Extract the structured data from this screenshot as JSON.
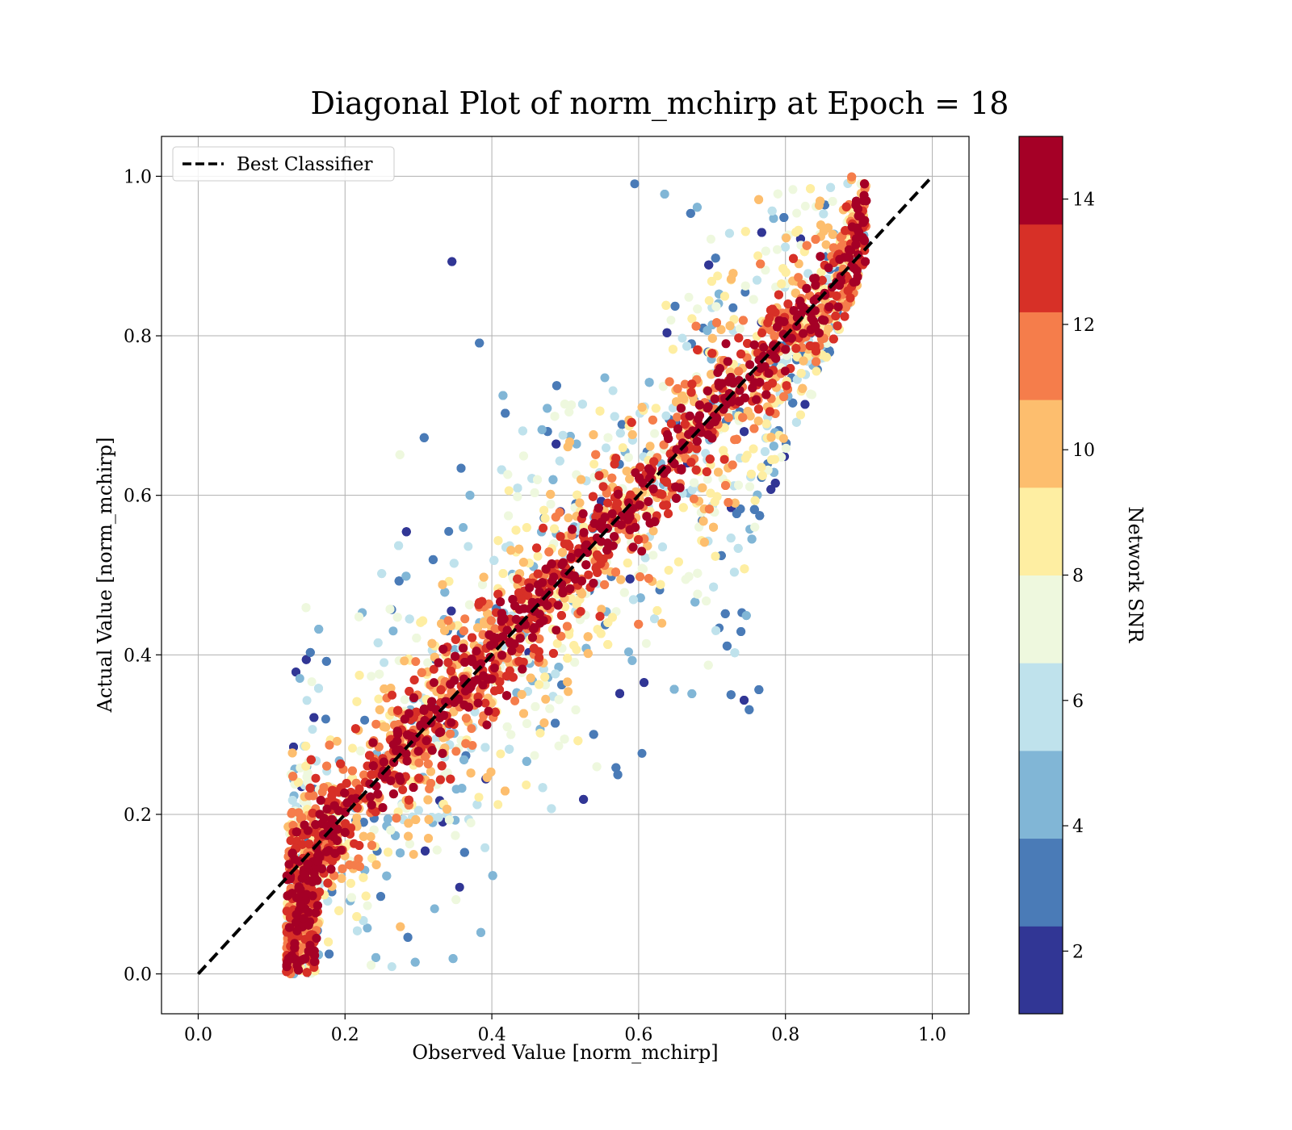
{
  "chart_data": {
    "type": "scatter",
    "title": "Diagonal Plot of norm_mchirp at Epoch = 18",
    "xlabel": "Observed Value [norm_mchirp]",
    "ylabel": "Actual Value [norm_mchirp]",
    "xlim": [
      -0.05,
      1.05
    ],
    "ylim": [
      -0.05,
      1.05
    ],
    "x_ticks": [
      "0.0",
      "0.2",
      "0.4",
      "0.6",
      "0.8",
      "1.0"
    ],
    "y_ticks": [
      "0.0",
      "0.2",
      "0.4",
      "0.6",
      "0.8",
      "1.0"
    ],
    "grid": true,
    "legend": {
      "placement": "top-left",
      "entries": [
        "Best Classifier"
      ]
    },
    "reference_line": {
      "name": "Best Classifier",
      "x": [
        0.0,
        1.0
      ],
      "y": [
        0.0,
        1.0
      ],
      "style": "dashed",
      "color": "#000000"
    },
    "colorbar": {
      "label": "Network SNR",
      "range": [
        1,
        15
      ],
      "ticks": [
        "2",
        "4",
        "6",
        "8",
        "10",
        "12",
        "14"
      ],
      "colormap": "RdYlBu_r",
      "bins": [
        {
          "min": 1.0,
          "max": 2.4,
          "color": "#313695"
        },
        {
          "min": 2.4,
          "max": 3.8,
          "color": "#4a7bb7"
        },
        {
          "min": 3.8,
          "max": 5.2,
          "color": "#81b6d6"
        },
        {
          "min": 5.2,
          "max": 6.6,
          "color": "#bfe2ec"
        },
        {
          "min": 6.6,
          "max": 8.0,
          "color": "#eef8de"
        },
        {
          "min": 8.0,
          "max": 9.4,
          "color": "#feeea2"
        },
        {
          "min": 9.4,
          "max": 10.8,
          "color": "#fdbe6e"
        },
        {
          "min": 10.8,
          "max": 12.2,
          "color": "#f57d4b"
        },
        {
          "min": 12.2,
          "max": 13.6,
          "color": "#d73027"
        },
        {
          "min": 13.6,
          "max": 15.0,
          "color": "#a50026"
        }
      ]
    },
    "point_clusters": [
      {
        "snr": 14.5,
        "description": "dense band along diagonal",
        "x_range": [
          0.11,
          0.9
        ],
        "y_range": [
          0.0,
          1.0
        ]
      },
      {
        "snr": 7.0,
        "description": "low-SNR points above diagonal",
        "x_range": [
          0.13,
          0.6
        ],
        "y_range": [
          0.4,
          1.0
        ]
      },
      {
        "snr": 6.0,
        "description": "low-SNR points below diagonal",
        "x_range": [
          0.3,
          0.85
        ],
        "y_range": [
          0.0,
          0.55
        ]
      }
    ]
  }
}
